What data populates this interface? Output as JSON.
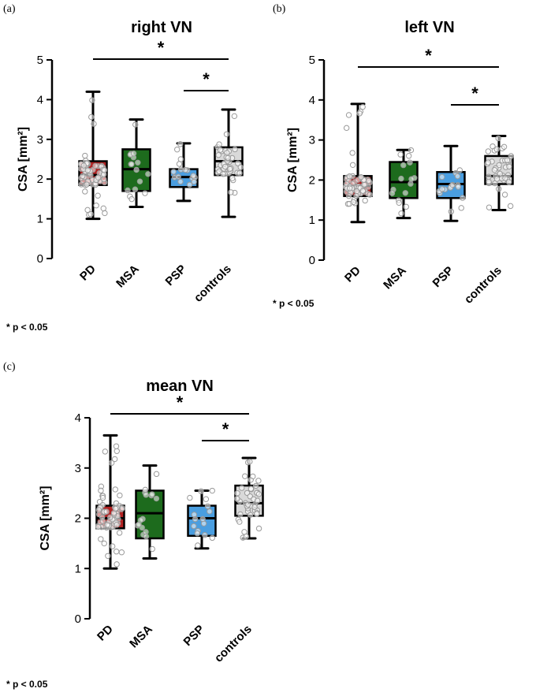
{
  "colors": {
    "PD": "#b22222",
    "MSA": "#1d6b1d",
    "PSP": "#4a9ee0",
    "controls": "#d9d9d9",
    "axis": "#000000",
    "points": "#c8c8c8"
  },
  "panel_labels": [
    "(a)",
    "(b)",
    "(c)"
  ],
  "footnotes": [
    "* p < 0.05",
    "* p < 0.05",
    "* p < 0.05"
  ],
  "chart_data": [
    {
      "type": "box",
      "title": "right VN",
      "xlabel": "",
      "ylabel": "CSA [mm²]",
      "ylim": [
        0,
        5
      ],
      "yticks": [
        "0",
        "1",
        "2",
        "3",
        "4",
        "5"
      ],
      "categories": [
        "PD",
        "MSA",
        "PSP",
        "controls"
      ],
      "boxes": [
        {
          "name": "PD",
          "min": 1.0,
          "q1": 1.85,
          "median": 2.1,
          "q3": 2.45,
          "max": 4.2
        },
        {
          "name": "MSA",
          "min": 1.3,
          "q1": 1.7,
          "median": 2.25,
          "q3": 2.75,
          "max": 3.5
        },
        {
          "name": "PSP",
          "min": 1.45,
          "q1": 1.8,
          "median": 2.05,
          "q3": 2.25,
          "max": 2.9
        },
        {
          "name": "controls",
          "min": 1.05,
          "q1": 2.1,
          "median": 2.45,
          "q3": 2.8,
          "max": 3.75
        }
      ],
      "significance": [
        {
          "from": "PD",
          "to": "controls",
          "label": "*"
        },
        {
          "from": "PSP",
          "to": "controls",
          "label": "*"
        }
      ]
    },
    {
      "type": "box",
      "title": "left VN",
      "xlabel": "",
      "ylabel": "CSA [mm²]",
      "ylim": [
        0,
        5
      ],
      "yticks": [
        "0",
        "1",
        "2",
        "3",
        "4",
        "5"
      ],
      "categories": [
        "PD",
        "MSA",
        "PSP",
        "controls"
      ],
      "boxes": [
        {
          "name": "PD",
          "min": 0.95,
          "q1": 1.6,
          "median": 1.85,
          "q3": 2.1,
          "max": 3.9
        },
        {
          "name": "MSA",
          "min": 1.05,
          "q1": 1.55,
          "median": 1.95,
          "q3": 2.45,
          "max": 2.75
        },
        {
          "name": "PSP",
          "min": 0.98,
          "q1": 1.55,
          "median": 1.9,
          "q3": 2.2,
          "max": 2.85
        },
        {
          "name": "controls",
          "min": 1.25,
          "q1": 1.9,
          "median": 2.1,
          "q3": 2.6,
          "max": 3.1
        }
      ],
      "significance": [
        {
          "from": "PD",
          "to": "controls",
          "label": "*"
        },
        {
          "from": "PSP",
          "to": "controls",
          "label": "*"
        }
      ]
    },
    {
      "type": "box",
      "title": "mean VN",
      "xlabel": "",
      "ylabel": "CSA [mm²]",
      "ylim": [
        0,
        4
      ],
      "yticks": [
        "0",
        "1",
        "2",
        "3",
        "4"
      ],
      "categories": [
        "PD",
        "MSA",
        "PSP",
        "controls"
      ],
      "boxes": [
        {
          "name": "PD",
          "min": 1.0,
          "q1": 1.8,
          "median": 2.0,
          "q3": 2.25,
          "max": 3.65
        },
        {
          "name": "MSA",
          "min": 1.2,
          "q1": 1.6,
          "median": 2.1,
          "q3": 2.55,
          "max": 3.05
        },
        {
          "name": "PSP",
          "min": 1.4,
          "q1": 1.65,
          "median": 2.0,
          "q3": 2.25,
          "max": 2.55
        },
        {
          "name": "controls",
          "min": 1.6,
          "q1": 2.05,
          "median": 2.3,
          "q3": 2.65,
          "max": 3.2
        }
      ],
      "significance": [
        {
          "from": "PD",
          "to": "controls",
          "label": "*"
        },
        {
          "from": "PSP",
          "to": "controls",
          "label": "*"
        }
      ]
    }
  ]
}
